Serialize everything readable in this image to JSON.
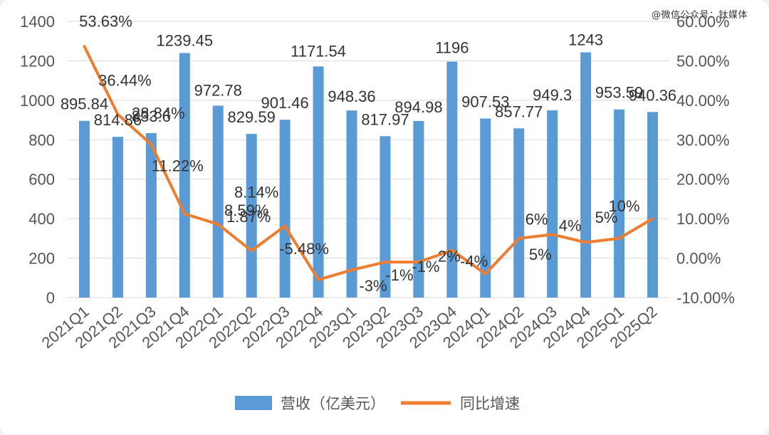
{
  "watermark": "@微信公众号：钛媒体",
  "legend": {
    "bar_label": "营收（亿美元）",
    "line_label": "同比增速"
  },
  "colors": {
    "bar": "#5b9bd5",
    "line": "#ed7d31",
    "grid": "#d9d9d9",
    "text": "#595959"
  },
  "chart_data": {
    "type": "bar",
    "categories": [
      "2021Q1",
      "2021Q2",
      "2021Q3",
      "2021Q4",
      "2022Q1",
      "2022Q2",
      "2022Q3",
      "2022Q4",
      "2023Q1",
      "2023Q2",
      "2023Q3",
      "2023Q4",
      "2024Q1",
      "2024Q2",
      "2024Q3",
      "2024Q4",
      "2025Q1",
      "2025Q2"
    ],
    "series": [
      {
        "name": "营收（亿美元）",
        "type": "bar",
        "axis": "left",
        "values": [
          895.84,
          814.86,
          833.6,
          1239.45,
          972.78,
          829.59,
          901.46,
          1171.54,
          948.36,
          817.97,
          894.98,
          1196,
          907.53,
          857.77,
          949.3,
          1243,
          953.59,
          940.36
        ],
        "labels": [
          "895.84",
          "814.86",
          "833.6",
          "1239.45",
          "972.78",
          "829.59",
          "901.46",
          "1171.54",
          "948.36",
          "817.97",
          "894.98",
          "1196",
          "907.53",
          "857.77",
          "949.3",
          "1243",
          "953.59",
          "940.36"
        ]
      },
      {
        "name": "同比增速",
        "type": "line",
        "axis": "right",
        "values": [
          53.63,
          36.44,
          28.84,
          11.22,
          8.59,
          1.87,
          8.14,
          -5.48,
          -3,
          -1,
          -1,
          2,
          -4,
          5,
          6,
          4,
          5,
          10
        ],
        "labels": [
          "53.63%",
          "36.44%",
          "28.84%",
          "11.22%",
          "8.59%",
          "1.87%",
          "8.14%",
          "-5.48%",
          "-3%",
          "-1%",
          "-1%",
          "2%",
          "-4%",
          "5%",
          "6%",
          "4%",
          "5%",
          "10%"
        ]
      }
    ],
    "y_left": {
      "min": 0,
      "max": 1400,
      "ticks": [
        "0",
        "200",
        "400",
        "600",
        "800",
        "1000",
        "1200",
        "1400"
      ]
    },
    "y_right": {
      "min": -10,
      "max": 60,
      "ticks": [
        "-10.00%",
        "0.00%",
        "10.00%",
        "20.00%",
        "30.00%",
        "40.00%",
        "50.00%",
        "60.00%"
      ]
    },
    "grid": true,
    "legend_position": "bottom"
  }
}
